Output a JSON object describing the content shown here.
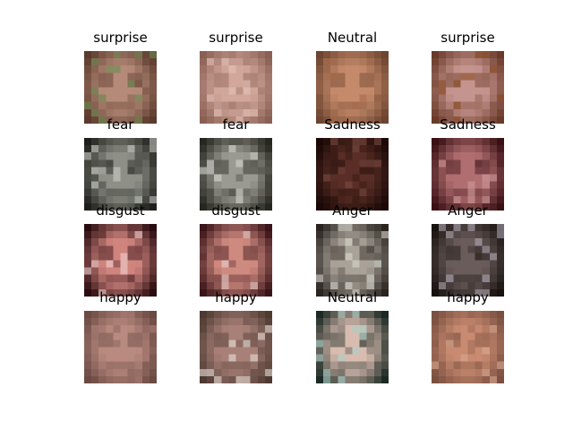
{
  "grid": {
    "rows": 4,
    "cols": 4,
    "tiles": [
      {
        "label": "surprise",
        "tone": "#b58a78",
        "shade": "#5a3a2c",
        "accent": "#6b8a50"
      },
      {
        "label": "surprise",
        "tone": "#d2a79b",
        "shade": "#8a6055",
        "accent": "#e4c2b8"
      },
      {
        "label": "Neutral",
        "tone": "#c48a6a",
        "shade": "#6e4530",
        "accent": "#a86a4a"
      },
      {
        "label": "surprise",
        "tone": "#c4948e",
        "shade": "#6a3a2a",
        "accent": "#8a4a20"
      },
      {
        "label": "fear",
        "tone": "#8e9088",
        "shade": "#1e1f1a",
        "accent": "#c8cac4"
      },
      {
        "label": "fear",
        "tone": "#9a9a92",
        "shade": "#262720",
        "accent": "#d2d4ce"
      },
      {
        "label": "Sadness",
        "tone": "#5a2e26",
        "shade": "#1a0806",
        "accent": "#7a4a40"
      },
      {
        "label": "Sadness",
        "tone": "#b06e70",
        "shade": "#3a1014",
        "accent": "#d09a9a"
      },
      {
        "label": "disgust",
        "tone": "#d0847e",
        "shade": "#2a0c10",
        "accent": "#f0d0d0"
      },
      {
        "label": "disgust",
        "tone": "#cf8a80",
        "shade": "#3a1418",
        "accent": "#ead0cc"
      },
      {
        "label": "Anger",
        "tone": "#a8a298",
        "shade": "#2a2420",
        "accent": "#d8d8ce"
      },
      {
        "label": "Anger",
        "tone": "#6a5c5a",
        "shade": "#18120f",
        "accent": "#b0a8b4"
      },
      {
        "label": "happy",
        "tone": "#b88a80",
        "shade": "#6a4a42",
        "accent": "#a87a74"
      },
      {
        "label": "happy",
        "tone": "#a88078",
        "shade": "#4e3a32",
        "accent": "#e8e0d8"
      },
      {
        "label": "Neutral",
        "tone": "#d8bcb0",
        "shade": "#1c2a24",
        "accent": "#a8d0c8"
      },
      {
        "label": "happy",
        "tone": "#c88a70",
        "shade": "#7a5040",
        "accent": "#d8a890"
      }
    ]
  }
}
